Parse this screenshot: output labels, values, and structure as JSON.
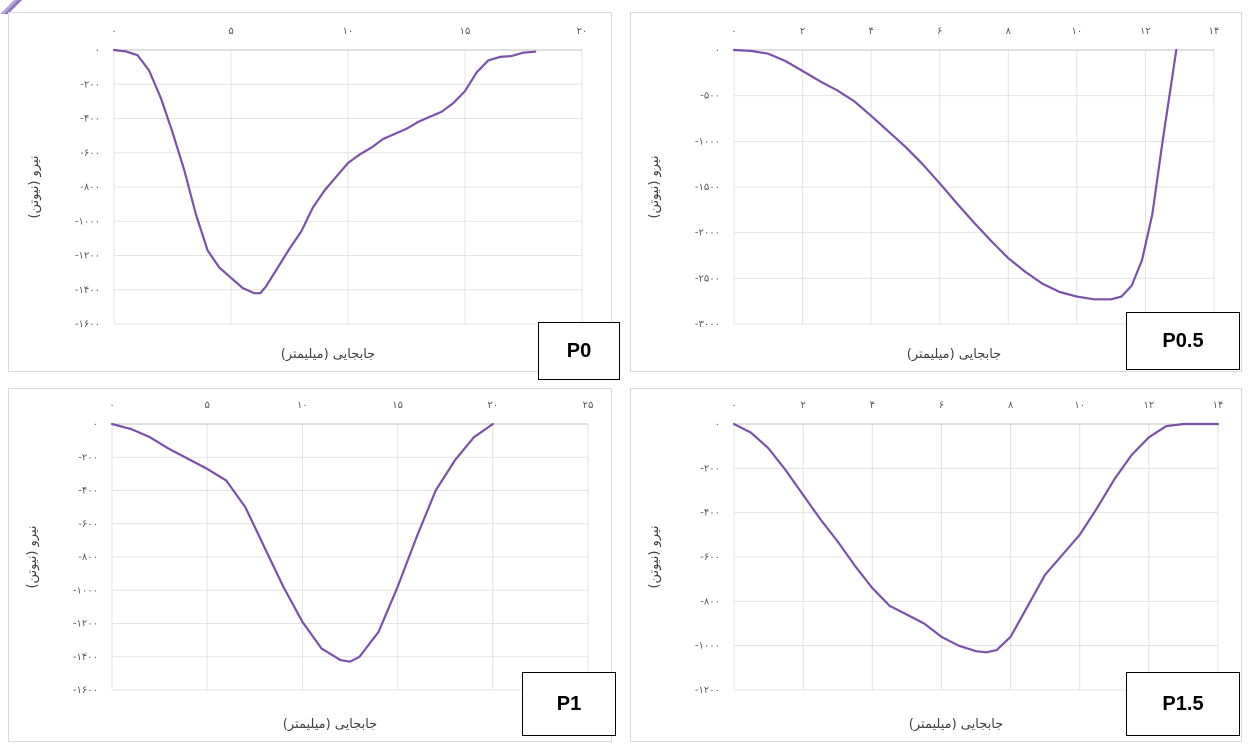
{
  "chart_data": [
    {
      "type": "line",
      "panel_label": "P0",
      "xlabel": "جابجایی (میلیمتر)",
      "ylabel": "نیرو (نیوتن)",
      "xlim": [
        0,
        20
      ],
      "ylim": [
        -1600,
        0
      ],
      "x_ticks": [
        0,
        5,
        10,
        15,
        20
      ],
      "x_tick_labels": [
        "۰",
        "۵",
        "۱۰",
        "۱۵",
        "۲۰"
      ],
      "y_ticks": [
        0,
        -200,
        -400,
        -600,
        -800,
        -1000,
        -1200,
        -1400,
        -1600
      ],
      "y_tick_labels": [
        "۰",
        "-۲۰۰",
        "-۴۰۰",
        "-۶۰۰",
        "-۸۰۰",
        "-۱۰۰۰",
        "-۱۲۰۰",
        "-۱۴۰۰",
        "-۱۶۰۰"
      ],
      "line_color": "#7b52ab",
      "grid": true,
      "series": [
        {
          "x": [
            0,
            0.5,
            1,
            1.5,
            2,
            2.5,
            3,
            3.5,
            4,
            4.5,
            5,
            5.5,
            6,
            6.25,
            6.5,
            7,
            7.5,
            8,
            8.5,
            9,
            9.5,
            10,
            10.5,
            11,
            11.5,
            12,
            12.5,
            13,
            13.5,
            14,
            14.5,
            15,
            15.5,
            16,
            16.5,
            17,
            17.5,
            18
          ],
          "y": [
            0,
            -8,
            -30,
            -120,
            -280,
            -480,
            -700,
            -960,
            -1170,
            -1270,
            -1330,
            -1390,
            -1420,
            -1420,
            -1380,
            -1270,
            -1160,
            -1060,
            -920,
            -820,
            -740,
            -660,
            -610,
            -570,
            -520,
            -490,
            -460,
            -420,
            -390,
            -360,
            -310,
            -240,
            -130,
            -60,
            -40,
            -35,
            -15,
            -10
          ]
        }
      ]
    },
    {
      "type": "line",
      "panel_label": "P0.5",
      "xlabel": "جابجایی (میلیمتر)",
      "ylabel": "نیرو (نیوتن)",
      "xlim": [
        0,
        14
      ],
      "ylim": [
        -3000,
        0
      ],
      "x_ticks": [
        0,
        2,
        4,
        6,
        8,
        10,
        12,
        14
      ],
      "x_tick_labels": [
        "۰",
        "۲",
        "۴",
        "۶",
        "۸",
        "۱۰",
        "۱۲",
        "۱۴"
      ],
      "y_ticks": [
        0,
        -500,
        -1000,
        -1500,
        -2000,
        -2500,
        -3000
      ],
      "y_tick_labels": [
        "۰",
        "-۵۰۰",
        "-۱۰۰۰",
        "-۱۵۰۰",
        "-۲۰۰۰",
        "-۲۵۰۰",
        "-۳۰۰۰"
      ],
      "line_color": "#7b52ab",
      "grid": true,
      "series": [
        {
          "x": [
            0,
            0.5,
            1,
            1.5,
            2,
            2.5,
            3,
            3.5,
            4,
            4.5,
            5,
            5.5,
            6,
            6.5,
            7,
            7.5,
            8,
            8.5,
            9,
            9.5,
            10,
            10.5,
            11,
            11.3,
            11.6,
            11.9,
            12.2,
            12.5,
            12.9
          ],
          "y": [
            0,
            -10,
            -40,
            -120,
            -230,
            -340,
            -440,
            -560,
            -720,
            -890,
            -1060,
            -1250,
            -1460,
            -1680,
            -1890,
            -2090,
            -2280,
            -2430,
            -2560,
            -2650,
            -2700,
            -2730,
            -2730,
            -2700,
            -2580,
            -2300,
            -1800,
            -1000,
            0
          ]
        }
      ]
    },
    {
      "type": "line",
      "panel_label": "P1",
      "xlabel": "جابجایی (میلیمتر)",
      "ylabel": "نیرو (نیوتن)",
      "xlim": [
        0,
        25
      ],
      "ylim": [
        -1600,
        0
      ],
      "x_ticks": [
        0,
        5,
        10,
        15,
        20,
        25
      ],
      "x_tick_labels": [
        "۰",
        "۵",
        "۱۰",
        "۱۵",
        "۲۰",
        "۲۵"
      ],
      "y_ticks": [
        0,
        -200,
        -400,
        -600,
        -800,
        -1000,
        -1200,
        -1400,
        -1600
      ],
      "y_tick_labels": [
        "۰",
        "-۲۰۰",
        "-۴۰۰",
        "-۶۰۰",
        "-۸۰۰",
        "-۱۰۰۰",
        "-۱۲۰۰",
        "-۱۴۰۰",
        "-۱۶۰۰"
      ],
      "line_color": "#7b52ab",
      "grid": true,
      "series": [
        {
          "x": [
            0,
            1,
            2,
            3,
            4,
            5,
            6,
            7,
            8,
            9,
            10,
            11,
            12,
            12.5,
            13,
            14,
            15,
            16,
            17,
            18,
            19,
            20
          ],
          "y": [
            0,
            -30,
            -80,
            -150,
            -210,
            -270,
            -340,
            -500,
            -740,
            -980,
            -1190,
            -1350,
            -1420,
            -1430,
            -1400,
            -1250,
            -980,
            -680,
            -400,
            -220,
            -80,
            0
          ]
        }
      ]
    },
    {
      "type": "line",
      "panel_label": "P1.5",
      "xlabel": "جابجایی (میلیمتر)",
      "ylabel": "نیرو (نیوتن)",
      "xlim": [
        0,
        14
      ],
      "ylim": [
        -1200,
        0
      ],
      "x_ticks": [
        0,
        2,
        4,
        6,
        8,
        10,
        12,
        14
      ],
      "x_tick_labels": [
        "۰",
        "۲",
        "۴",
        "۶",
        "۸",
        "۱۰",
        "۱۲",
        "۱۴"
      ],
      "y_ticks": [
        0,
        -200,
        -400,
        -600,
        -800,
        -1000,
        -1200
      ],
      "y_tick_labels": [
        "۰",
        "-۲۰۰",
        "-۴۰۰",
        "-۶۰۰",
        "-۸۰۰",
        "-۱۰۰۰",
        "-۱۲۰۰"
      ],
      "line_color": "#7b52ab",
      "grid": true,
      "series": [
        {
          "x": [
            0,
            0.5,
            1,
            1.5,
            2,
            2.5,
            3,
            3.5,
            4,
            4.5,
            5,
            5.5,
            6,
            6.5,
            7,
            7.3,
            7.6,
            8,
            8.5,
            9,
            9.5,
            10,
            10.5,
            11,
            11.5,
            12,
            12.5,
            13,
            14
          ],
          "y": [
            0,
            -40,
            -110,
            -210,
            -320,
            -430,
            -530,
            -640,
            -740,
            -820,
            -860,
            -900,
            -960,
            -1000,
            -1025,
            -1030,
            -1020,
            -960,
            -820,
            -680,
            -590,
            -500,
            -380,
            -250,
            -140,
            -60,
            -10,
            0,
            0
          ]
        }
      ]
    }
  ]
}
